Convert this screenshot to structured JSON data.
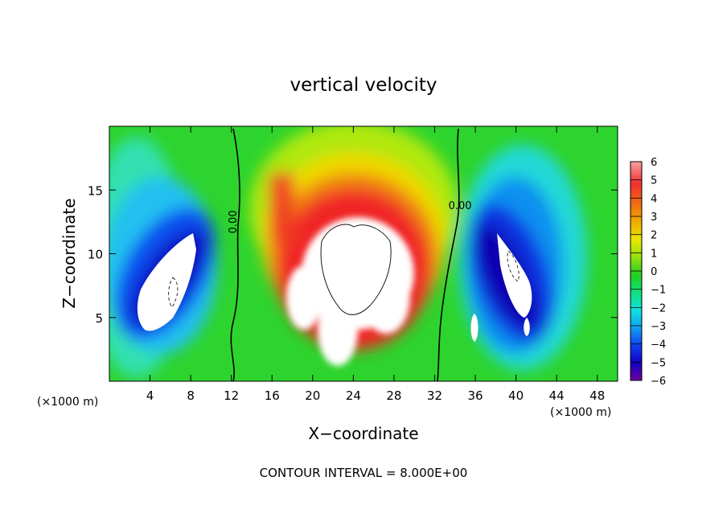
{
  "chart_data": {
    "type": "heatmap",
    "title": "vertical velocity",
    "xlabel": "X−coordinate",
    "ylabel": "Z−coordinate",
    "x_unit_left": "(×1000 m)",
    "x_unit_right": "(×1000 m)",
    "footer": "CONTOUR INTERVAL = 8.000E+00",
    "xlim": [
      0,
      50
    ],
    "ylim": [
      0,
      20
    ],
    "x_ticks": [
      4,
      8,
      12,
      16,
      20,
      24,
      28,
      32,
      36,
      40,
      44,
      48
    ],
    "x_tick_labels": [
      "4",
      "8",
      "12",
      "16",
      "20",
      "24",
      "28",
      "32",
      "36",
      "40",
      "44",
      "48"
    ],
    "y_ticks": [
      5,
      10,
      15
    ],
    "y_tick_labels": [
      "5",
      "10",
      "15"
    ],
    "colorbar": {
      "min": -6,
      "max": 6,
      "ticks": [
        6,
        5,
        4,
        3,
        2,
        1,
        0,
        -1,
        -2,
        -3,
        -4,
        -5,
        -6
      ],
      "tick_labels": [
        "6",
        "5",
        "4",
        "3",
        "2",
        "1",
        "0",
        "−1",
        "−2",
        "−3",
        "−4",
        "−5",
        "−6"
      ]
    },
    "contour_labels": [
      {
        "text": "0.00",
        "x": 12.5,
        "z": 12.5,
        "rotate": -90
      },
      {
        "text": "0.00",
        "x": 34.5,
        "z": 13.5,
        "rotate": 0
      }
    ],
    "features": [
      {
        "name": "left-downdraft",
        "x": 6.5,
        "z": 8.5,
        "value": -5.5
      },
      {
        "name": "central-updraft",
        "x": 24.5,
        "z": 10.5,
        "value": 6.0
      },
      {
        "name": "right-downdraft",
        "x": 40.0,
        "z": 8.5,
        "value": -5.5
      }
    ]
  }
}
